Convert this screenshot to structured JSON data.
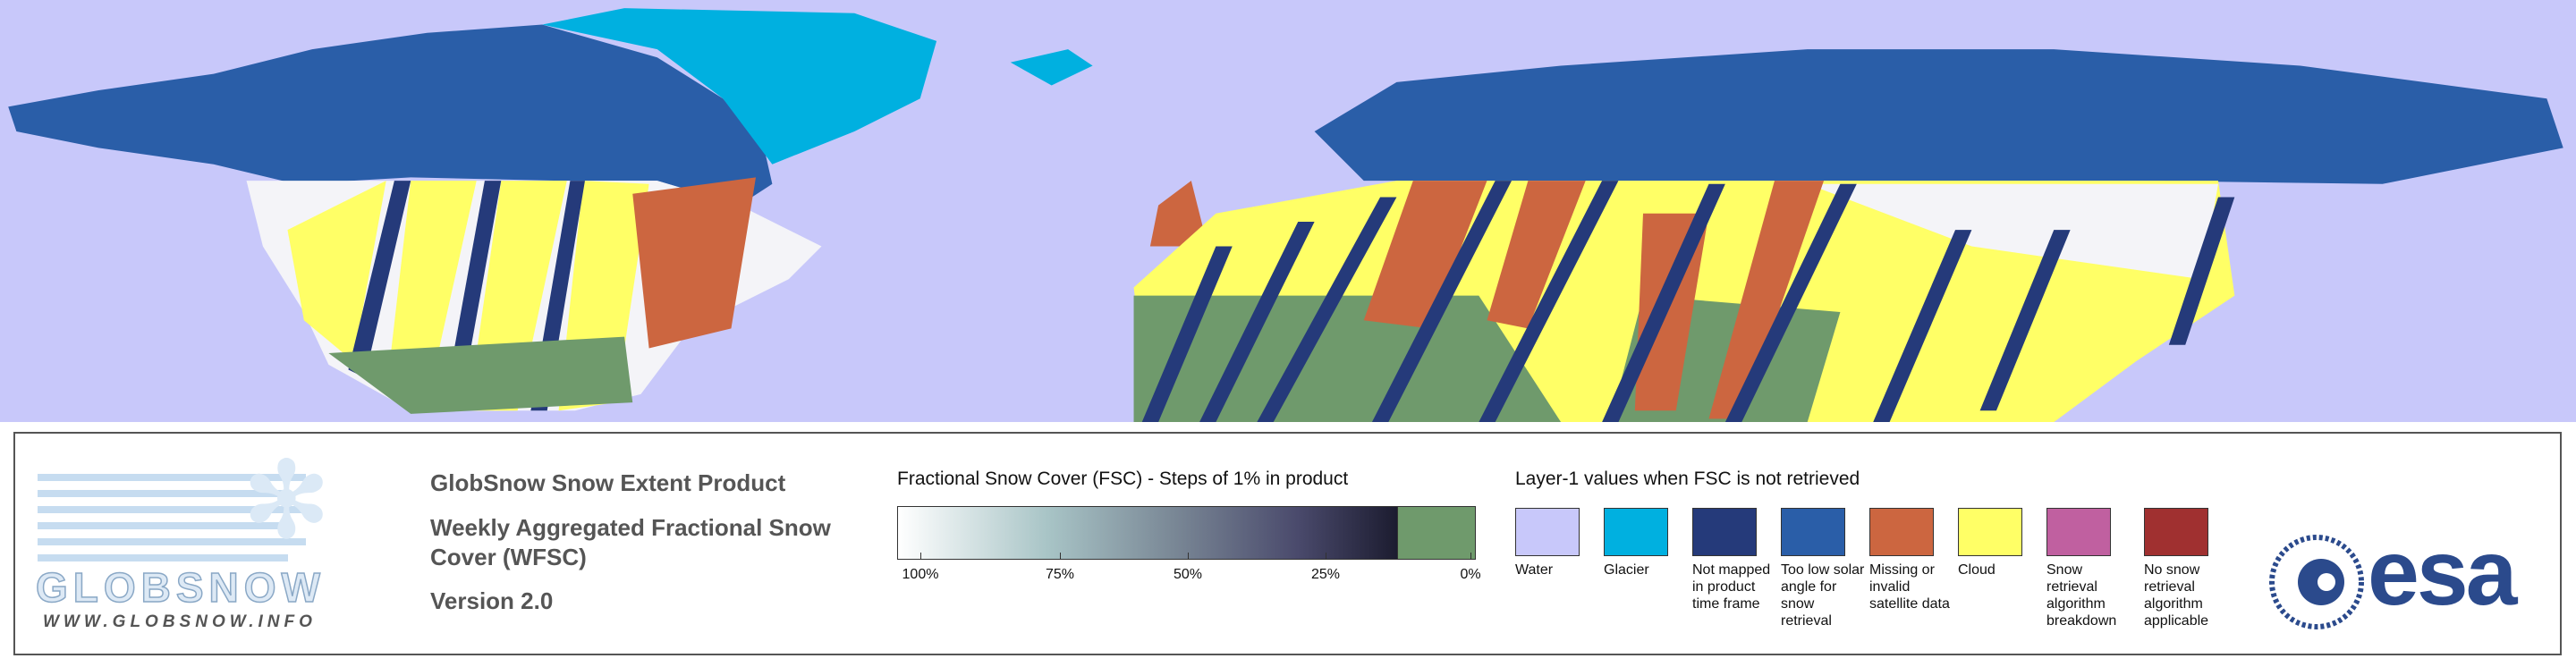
{
  "logo": {
    "name": "GLOBSNOW",
    "url": "WWW.GLOBSNOW.INFO"
  },
  "product": {
    "title": "GlobSnow Snow Extent Product",
    "subtitle": "Weekly Aggregated Fractional Snow Cover (WFSC)",
    "version": "Version 2.0"
  },
  "colorbar": {
    "title": "Fractional Snow Cover (FSC) - Steps of 1% in product",
    "tick_labels": [
      "100%",
      "75%",
      "50%",
      "25%",
      "0%"
    ]
  },
  "layer1": {
    "title": "Layer-1 values when FSC is not retrieved",
    "items": [
      {
        "label": "Water",
        "color": "#c8c8fa"
      },
      {
        "label": "Glacier",
        "color": "#00b0e0"
      },
      {
        "label": "Not mapped in product time frame",
        "color": "#253a7a"
      },
      {
        "label": "Too low solar angle for snow retrieval",
        "color": "#2a5ea8"
      },
      {
        "label": "Missing or invalid satellite data",
        "color": "#cc6640"
      },
      {
        "label": "Cloud",
        "color": "#ffff66"
      },
      {
        "label": "Snow retrieval algorithm breakdown",
        "color": "#c060a0"
      },
      {
        "label": "No snow retrieval algorithm applicable",
        "color": "#a03030"
      }
    ]
  },
  "esa_logo": "esa"
}
